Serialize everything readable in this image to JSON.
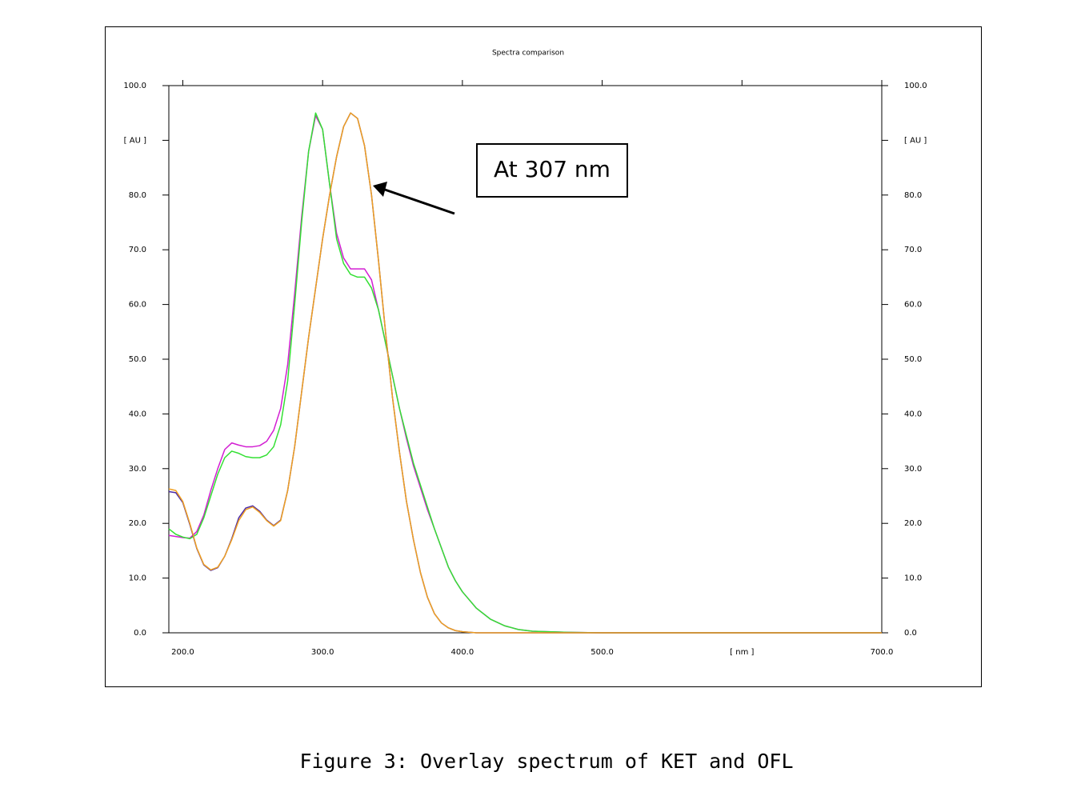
{
  "chart_data": {
    "type": "line",
    "title": "Spectra comparison",
    "annotations": [
      "At 307 nm"
    ],
    "x": [
      190,
      195,
      200,
      205,
      210,
      215,
      220,
      225,
      230,
      235,
      240,
      245,
      250,
      255,
      260,
      265,
      270,
      275,
      280,
      285,
      290,
      295,
      300,
      305,
      310,
      315,
      320,
      325,
      330,
      335,
      340,
      345,
      350,
      355,
      360,
      365,
      370,
      375,
      380,
      385,
      390,
      395,
      400,
      410,
      420,
      430,
      440,
      450,
      475,
      500,
      550,
      600,
      650,
      700
    ],
    "series": [
      {
        "color": "#d21ed2",
        "values": [
          17.8,
          17.6,
          17.4,
          17.3,
          18.5,
          21.5,
          26,
          30,
          33.5,
          34.7,
          34.3,
          34,
          34,
          34.2,
          35,
          37,
          41,
          49,
          62,
          76,
          88,
          94.5,
          92,
          82,
          73,
          68.5,
          66.5,
          66.5,
          66.5,
          64.5,
          59,
          53,
          47,
          41,
          35.5,
          30.5,
          26.5,
          22.5,
          19,
          15.5,
          12,
          9.5,
          7.5,
          4.5,
          2.5,
          1.3,
          0.6,
          0.3,
          0.1,
          0,
          0,
          0,
          0,
          0
        ]
      },
      {
        "color": "#33e033",
        "values": [
          19,
          18,
          17.5,
          17.2,
          18,
          21,
          25,
          29,
          32,
          33.2,
          32.8,
          32.2,
          32,
          32,
          32.5,
          34,
          38,
          46,
          60,
          75,
          88,
          95,
          92,
          82,
          72,
          67.5,
          65.5,
          65,
          65,
          63,
          59,
          53,
          47,
          41,
          36,
          31,
          27,
          23,
          19,
          15.5,
          12,
          9.5,
          7.5,
          4.5,
          2.5,
          1.3,
          0.6,
          0.3,
          0.1,
          0,
          0,
          0,
          0,
          0
        ]
      },
      {
        "color": "#4b2aa8",
        "values": [
          25.8,
          25.6,
          23.8,
          19.8,
          15.4,
          12.4,
          11.4,
          11.9,
          14,
          17.2,
          21,
          22.8,
          23.2,
          22.2,
          20.6,
          19.6,
          20.6,
          26,
          34,
          44,
          54,
          63,
          72,
          80,
          87,
          92.5,
          95,
          94,
          89,
          80,
          68,
          55,
          43,
          33,
          24,
          17,
          11,
          6.5,
          3.5,
          1.8,
          0.9,
          0.4,
          0.2,
          0,
          0,
          0,
          0,
          0,
          0,
          0,
          0,
          0,
          0,
          0
        ]
      },
      {
        "color": "#f0a020",
        "values": [
          26.3,
          26,
          24,
          20,
          15.5,
          12.5,
          11.5,
          12,
          14,
          17,
          20.5,
          22.5,
          23,
          22,
          20.5,
          19.5,
          20.5,
          26,
          34,
          44,
          54,
          63,
          72,
          80,
          87,
          92.5,
          95,
          94,
          89,
          80,
          68,
          55,
          43,
          33,
          24,
          17,
          11,
          6.5,
          3.5,
          1.8,
          0.9,
          0.4,
          0.2,
          0,
          0,
          0,
          0,
          0,
          0,
          0,
          0,
          0,
          0,
          0
        ]
      }
    ],
    "xlim": [
      190,
      700
    ],
    "xticks": [
      {
        "value": 200,
        "label": "200.0"
      },
      {
        "value": 300,
        "label": "300.0"
      },
      {
        "value": 400,
        "label": "400.0"
      },
      {
        "value": 500,
        "label": "500.0"
      },
      {
        "value": 600,
        "label": "[ nm ]"
      },
      {
        "value": 700,
        "label": "700.0"
      }
    ],
    "ylim": [
      0,
      100
    ],
    "yticks": [
      {
        "value": 0,
        "label": "0.0"
      },
      {
        "value": 10,
        "label": "10.0"
      },
      {
        "value": 20,
        "label": "20.0"
      },
      {
        "value": 30,
        "label": "30.0"
      },
      {
        "value": 40,
        "label": "40.0"
      },
      {
        "value": 50,
        "label": "50.0"
      },
      {
        "value": 60,
        "label": "60.0"
      },
      {
        "value": 70,
        "label": "70.0"
      },
      {
        "value": 80,
        "label": "80.0"
      },
      {
        "value": 90,
        "label": "[ AU ]"
      },
      {
        "value": 100,
        "label": "100.0"
      }
    ],
    "y2lim": [
      0,
      100
    ],
    "y2ticks": [
      {
        "value": 0,
        "label": "0.0"
      },
      {
        "value": 10,
        "label": "10.0"
      },
      {
        "value": 20,
        "label": "20.0"
      },
      {
        "value": 30,
        "label": "30.0"
      },
      {
        "value": 40,
        "label": "40.0"
      },
      {
        "value": 50,
        "label": "50.0"
      },
      {
        "value": 60,
        "label": "60.0"
      },
      {
        "value": 70,
        "label": "70.0"
      },
      {
        "value": 80,
        "label": "80.0"
      },
      {
        "value": 90,
        "label": "[ AU ]"
      },
      {
        "value": 100,
        "label": "100.0"
      }
    ]
  },
  "caption": "Figure 3: Overlay spectrum of KET and OFL"
}
